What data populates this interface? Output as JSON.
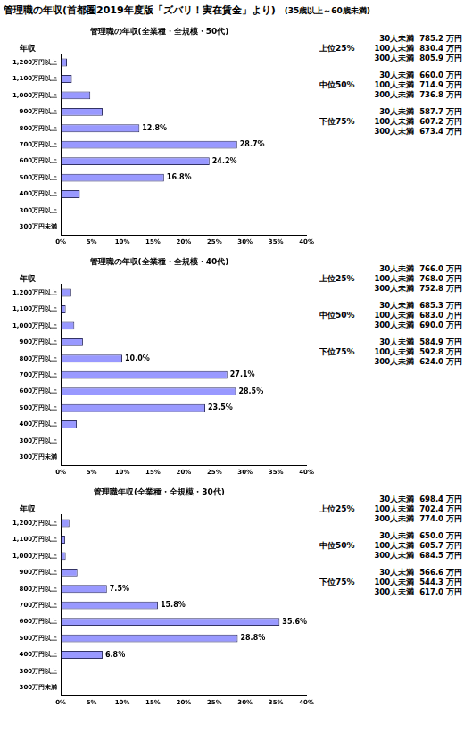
{
  "title": "管理職の年収(首都圏2019年度版「ズバリ！実在賃金」より)",
  "subtitle": "(35歳以上～60歳未満)",
  "chart_data": [
    {
      "type": "bar",
      "orientation": "horizontal",
      "title": "管理職の年収(全業種・全規模・50代)",
      "y_label": "年収",
      "categories": [
        "1,200万円以上",
        "1,100万円以上",
        "1,000万円以上",
        "900万円以上",
        "800万円以上",
        "700万円以上",
        "600万円以上",
        "500万円以上",
        "400万円以上",
        "300万円以上",
        "300万円未満"
      ],
      "values": [
        1.0,
        1.8,
        4.8,
        6.8,
        12.8,
        28.7,
        24.2,
        16.8,
        3.1,
        0,
        0
      ],
      "value_labels": [
        null,
        null,
        null,
        null,
        "12.8%",
        "28.7%",
        "24.2%",
        "16.8%",
        null,
        null,
        null
      ],
      "data_labels": true,
      "color": "#9999ff",
      "grid": false,
      "xlim": [
        0,
        40
      ],
      "xticks": [
        {
          "value": 0,
          "label": "0%"
        },
        {
          "value": 5,
          "label": "5%"
        },
        {
          "value": 10,
          "label": "10%"
        },
        {
          "value": 15,
          "label": "15%"
        },
        {
          "value": 20,
          "label": "20%"
        },
        {
          "value": 25,
          "label": "25%"
        },
        {
          "value": 30,
          "label": "30%"
        },
        {
          "value": 35,
          "label": "35%"
        },
        {
          "value": 40,
          "label": "40%"
        }
      ],
      "summary": [
        {
          "label": "上位25%",
          "rows": [
            {
              "size": "30人未満",
              "value": "785.2 万円"
            },
            {
              "size": "100人未満",
              "value": "830.4 万円"
            },
            {
              "size": "300人未満",
              "value": "805.9 万円"
            }
          ]
        },
        {
          "label": "中位50%",
          "rows": [
            {
              "size": "30人未満",
              "value": "660.0 万円"
            },
            {
              "size": "100人未満",
              "value": "714.9 万円"
            },
            {
              "size": "300人未満",
              "value": "736.8 万円"
            }
          ]
        },
        {
          "label": "下位75%",
          "rows": [
            {
              "size": "30人未満",
              "value": "587.7 万円"
            },
            {
              "size": "100人未満",
              "value": "607.2 万円"
            },
            {
              "size": "300人未満",
              "value": "673.4 万円"
            }
          ]
        }
      ]
    },
    {
      "type": "bar",
      "orientation": "horizontal",
      "title": "管理職の年収(全業種・全規模・40代)",
      "y_label": "年収",
      "categories": [
        "1,200万円以上",
        "1,100万円以上",
        "1,000万円以上",
        "900万円以上",
        "800万円以上",
        "700万円以上",
        "600万円以上",
        "500万円以上",
        "400万円以上",
        "300万円以上",
        "300万円未満"
      ],
      "values": [
        1.7,
        0.8,
        2.2,
        3.6,
        10.0,
        27.1,
        28.5,
        23.5,
        2.6,
        0,
        0
      ],
      "value_labels": [
        null,
        null,
        null,
        null,
        "10.0%",
        "27.1%",
        "28.5%",
        "23.5%",
        null,
        null,
        null
      ],
      "data_labels": true,
      "color": "#9999ff",
      "grid": false,
      "xlim": [
        0,
        40
      ],
      "xticks": [
        {
          "value": 0,
          "label": "0%"
        },
        {
          "value": 5,
          "label": "5%"
        },
        {
          "value": 10,
          "label": "10%"
        },
        {
          "value": 15,
          "label": "15%"
        },
        {
          "value": 20,
          "label": "20%"
        },
        {
          "value": 25,
          "label": "25%"
        },
        {
          "value": 30,
          "label": "30%"
        },
        {
          "value": 35,
          "label": "35%"
        },
        {
          "value": 40,
          "label": "40%"
        }
      ],
      "summary": [
        {
          "label": "上位25%",
          "rows": [
            {
              "size": "30人未満",
              "value": "766.0 万円"
            },
            {
              "size": "100人未満",
              "value": "768.0 万円"
            },
            {
              "size": "300人未満",
              "value": "752.8 万円"
            }
          ]
        },
        {
          "label": "中位50%",
          "rows": [
            {
              "size": "30人未満",
              "value": "685.3 万円"
            },
            {
              "size": "100人未満",
              "value": "683.0 万円"
            },
            {
              "size": "300人未満",
              "value": "690.0 万円"
            }
          ]
        },
        {
          "label": "下位75%",
          "rows": [
            {
              "size": "30人未満",
              "value": "584.9 万円"
            },
            {
              "size": "100人未満",
              "value": "592.8 万円"
            },
            {
              "size": "300人未満",
              "value": "624.0 万円"
            }
          ]
        }
      ]
    },
    {
      "type": "bar",
      "orientation": "horizontal",
      "title": "管理職年収(全業種・全規模・30代)",
      "y_label": "年収",
      "categories": [
        "1,200万円以上",
        "1,100万円以上",
        "1,000万円以上",
        "900万円以上",
        "800万円以上",
        "700万円以上",
        "600万円以上",
        "500万円以上",
        "400万円以上",
        "300万円以上",
        "300万円未満"
      ],
      "values": [
        1.4,
        0.7,
        0.8,
        2.7,
        7.5,
        15.8,
        35.6,
        28.8,
        6.8,
        0,
        0
      ],
      "value_labels": [
        null,
        null,
        null,
        null,
        "7.5%",
        "15.8%",
        "35.6%",
        "28.8%",
        "6.8%",
        null,
        null
      ],
      "data_labels": true,
      "color": "#9999ff",
      "grid": false,
      "xlim": [
        0,
        40
      ],
      "xticks": [
        {
          "value": 0,
          "label": "0%"
        },
        {
          "value": 5,
          "label": "5%"
        },
        {
          "value": 10,
          "label": "10%"
        },
        {
          "value": 15,
          "label": "15%"
        },
        {
          "value": 20,
          "label": "20%"
        },
        {
          "value": 25,
          "label": "25%"
        },
        {
          "value": 30,
          "label": "30%"
        },
        {
          "value": 35,
          "label": "35%"
        },
        {
          "value": 40,
          "label": "40%"
        }
      ],
      "summary": [
        {
          "label": "上位25%",
          "rows": [
            {
              "size": "30人未満",
              "value": "698.4 万円"
            },
            {
              "size": "100人未満",
              "value": "702.4 万円"
            },
            {
              "size": "300人未満",
              "value": "774.0 万円"
            }
          ]
        },
        {
          "label": "中位50%",
          "rows": [
            {
              "size": "30人未満",
              "value": "650.0 万円"
            },
            {
              "size": "100人未満",
              "value": "605.7 万円"
            },
            {
              "size": "300人未満",
              "value": "684.5 万円"
            }
          ]
        },
        {
          "label": "下位75%",
          "rows": [
            {
              "size": "30人未満",
              "value": "566.6 万円"
            },
            {
              "size": "100人未満",
              "value": "544.3 万円"
            },
            {
              "size": "300人未満",
              "value": "617.0 万円"
            }
          ]
        }
      ]
    }
  ]
}
